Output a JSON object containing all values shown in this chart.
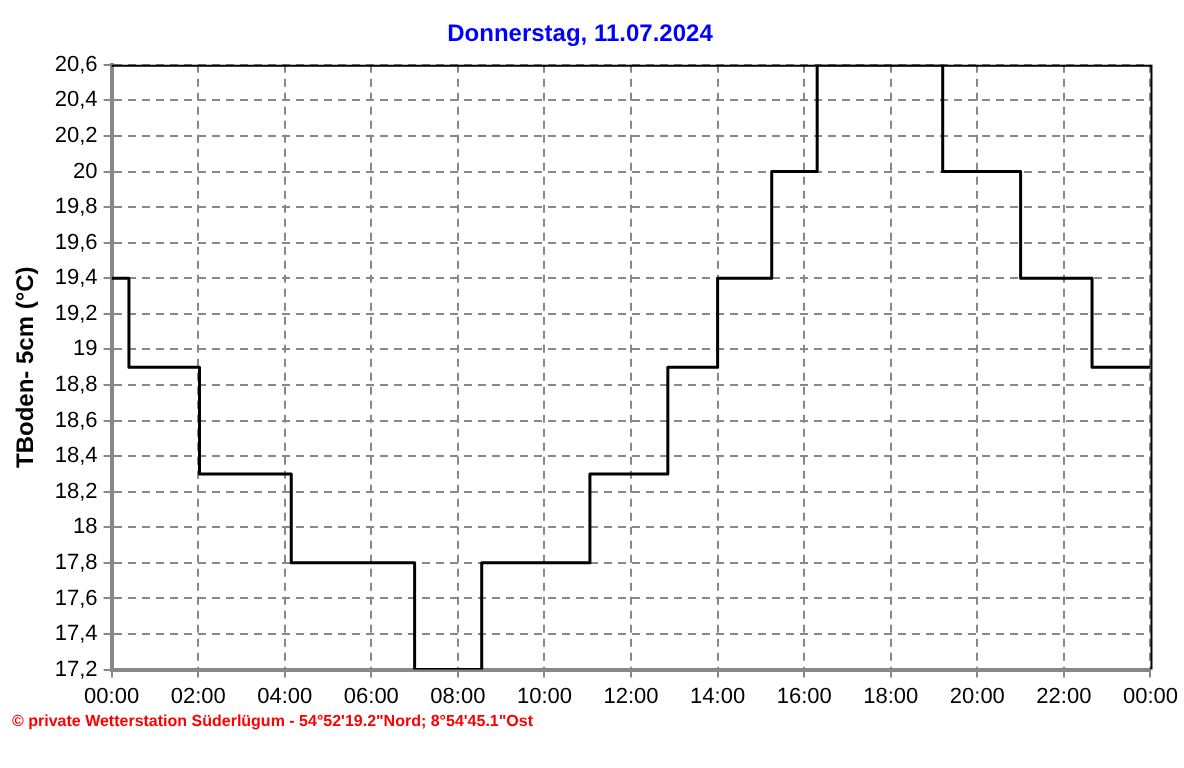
{
  "chart_data": {
    "type": "step",
    "title": "Donnerstag, 11.07.2024",
    "ylabel": "TBoden- 5cm (°C)",
    "x": [
      0,
      0.4,
      2.03,
      4.15,
      7,
      8.55,
      11.05,
      12.85,
      14,
      15.25,
      16.3,
      19.2,
      21,
      22.65,
      24
    ],
    "series": [
      {
        "color": "#000000",
        "values": [
          19.4,
          18.9,
          18.3,
          17.8,
          17.2,
          17.8,
          18.3,
          18.9,
          19.4,
          20,
          20.6,
          20,
          19.4,
          18.9,
          18.9
        ]
      }
    ],
    "xlim": [
      0,
      24
    ],
    "xticks": [
      {
        "value": 0,
        "label": "00:00"
      },
      {
        "value": 2,
        "label": "02:00"
      },
      {
        "value": 4,
        "label": "04:00"
      },
      {
        "value": 6,
        "label": "06:00"
      },
      {
        "value": 8,
        "label": "08:00"
      },
      {
        "value": 10,
        "label": "10:00"
      },
      {
        "value": 12,
        "label": "12:00"
      },
      {
        "value": 14,
        "label": "14:00"
      },
      {
        "value": 16,
        "label": "16:00"
      },
      {
        "value": 18,
        "label": "18:00"
      },
      {
        "value": 20,
        "label": "20:00"
      },
      {
        "value": 22,
        "label": "22:00"
      },
      {
        "value": 24,
        "label": "00:00"
      }
    ],
    "ylim": [
      17.2,
      20.6
    ],
    "yticks": [
      {
        "value": 17.2,
        "label": "17,2"
      },
      {
        "value": 17.4,
        "label": "17,4"
      },
      {
        "value": 17.6,
        "label": "17,6"
      },
      {
        "value": 17.8,
        "label": "17,8"
      },
      18,
      {
        "value": 18.2,
        "label": "18,2"
      },
      {
        "value": 18.4,
        "label": "18,4"
      },
      {
        "value": 18.6,
        "label": "18,6"
      },
      {
        "value": 18.8,
        "label": "18,8"
      },
      19,
      {
        "value": 19.2,
        "label": "19,2"
      },
      {
        "value": 19.4,
        "label": "19,4"
      },
      {
        "value": 19.6,
        "label": "19,6"
      },
      {
        "value": 19.8,
        "label": "19,8"
      },
      20,
      {
        "value": 20.2,
        "label": "20,2"
      },
      {
        "value": 20.4,
        "label": "20,4"
      },
      {
        "value": 20.6,
        "label": "20,6"
      }
    ],
    "grid": true,
    "legend": false,
    "marker": "none",
    "line_style": "solid",
    "annotations": [
      "© private Wetterstation Süderlügum - 54°52'19.2\"Nord; 8°54'45.1\"Ost"
    ]
  }
}
